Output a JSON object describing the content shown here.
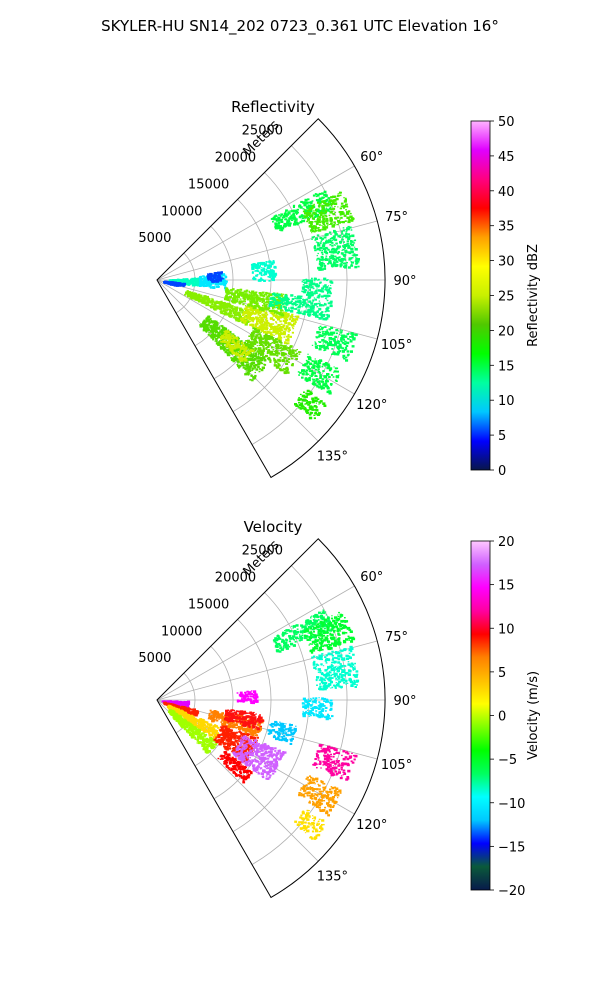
{
  "figure": {
    "suptitle": "SKYLER-HU  SN14_202  0723_0.361 UTC Elevation 16°"
  },
  "chart_data": [
    {
      "type": "polar-sector",
      "title": "Reflectivity",
      "r_label": "Meters",
      "r_ticks": [
        "5000",
        "10000",
        "15000",
        "20000",
        "25000"
      ],
      "r_lim": [
        0,
        30000
      ],
      "theta_ticks": [
        "60°",
        "75°",
        "90°",
        "105°",
        "120°",
        "135°"
      ],
      "theta_range_deg": [
        45,
        150
      ],
      "grid": true,
      "colorbar": {
        "label": "Reflectivity dBZ",
        "ticks": [
          "0",
          "5",
          "10",
          "15",
          "20",
          "25",
          "30",
          "35",
          "40",
          "45",
          "50"
        ],
        "range": [
          0,
          50
        ],
        "palette": [
          "#08164b",
          "#0000ff",
          "#00c8ff",
          "#00ffa0",
          "#00ff00",
          "#50c800",
          "#c8f000",
          "#ffff00",
          "#ffa000",
          "#ff0000",
          "#ff0080",
          "#e000ff",
          "#ffb4ff"
        ]
      },
      "echoes": [
        {
          "r": [
            1500,
            5500
          ],
          "theta": [
            86,
            97
          ],
          "color": "#00ffc0"
        },
        {
          "r": [
            800,
            3500
          ],
          "theta": [
            95,
            104
          ],
          "color": "#0044ff"
        },
        {
          "r": [
            5500,
            9000
          ],
          "theta": [
            84,
            97
          ],
          "color": "#00e8ff"
        },
        {
          "r": [
            6500,
            8500
          ],
          "theta": [
            82,
            91
          ],
          "color": "#0044ff"
        },
        {
          "r": [
            4000,
            13000
          ],
          "theta": [
            108,
            117
          ],
          "color": "#88ee00"
        },
        {
          "r": [
            12000,
            19000
          ],
          "theta": [
            104,
            116
          ],
          "color": "#ccf000"
        },
        {
          "r": [
            9000,
            17000
          ],
          "theta": [
            96,
            106
          ],
          "color": "#77ee00"
        },
        {
          "r": [
            8000,
            18000
          ],
          "theta": [
            125,
            137
          ],
          "color": "#55dd00"
        },
        {
          "r": [
            11000,
            15500
          ],
          "theta": [
            126,
            134
          ],
          "color": "#ccee00"
        },
        {
          "r": [
            14000,
            21000
          ],
          "theta": [
            116,
            126
          ],
          "color": "#66e000"
        },
        {
          "r": [
            15000,
            23000
          ],
          "theta": [
            96,
            103
          ],
          "color": "#00ff88"
        },
        {
          "r": [
            17000,
            25000
          ],
          "theta": [
            61,
            68
          ],
          "color": "#00ff44"
        },
        {
          "r": [
            21000,
            27000
          ],
          "theta": [
            64,
            73
          ],
          "color": "#44ee00"
        },
        {
          "r": [
            21000,
            26500
          ],
          "theta": [
            74,
            86
          ],
          "color": "#00ff66"
        },
        {
          "r": [
            12500,
            15500
          ],
          "theta": [
            80,
            90
          ],
          "color": "#00ffd0"
        },
        {
          "r": [
            19000,
            23000
          ],
          "theta": [
            89,
            96
          ],
          "color": "#00ff88"
        },
        {
          "r": [
            22000,
            27000
          ],
          "theta": [
            105,
            113
          ],
          "color": "#00ff55"
        },
        {
          "r": [
            22000,
            27000
          ],
          "theta": [
            116,
            124
          ],
          "color": "#00ff44"
        },
        {
          "r": [
            24000,
            27500
          ],
          "theta": [
            126,
            132
          ],
          "color": "#22ee00"
        }
      ]
    },
    {
      "type": "polar-sector",
      "title": "Velocity",
      "r_label": "Meters",
      "r_ticks": [
        "5000",
        "10000",
        "15000",
        "20000",
        "25000"
      ],
      "r_lim": [
        0,
        30000
      ],
      "theta_ticks": [
        "60°",
        "75°",
        "90°",
        "105°",
        "120°",
        "135°"
      ],
      "theta_range_deg": [
        45,
        150
      ],
      "grid": true,
      "colorbar": {
        "label": "Velocity (m/s)",
        "ticks": [
          "−20",
          "−15",
          "−10",
          "−5",
          "0",
          "5",
          "10",
          "15",
          "20"
        ],
        "range": [
          -20,
          20
        ],
        "palette": [
          "#081a4b",
          "#0a5a3a",
          "#0000ff",
          "#00c8ff",
          "#00ffff",
          "#00ff60",
          "#00ff00",
          "#80ff00",
          "#ffff00",
          "#ffc000",
          "#ff8000",
          "#ff0000",
          "#ff00a0",
          "#ff00ff",
          "#d060ff",
          "#ffc8ff"
        ]
      },
      "echoes": [
        {
          "r": [
            600,
            4000
          ],
          "theta": [
            91,
            102
          ],
          "color": "#e000ff"
        },
        {
          "r": [
            800,
            5500
          ],
          "theta": [
            103,
            112
          ],
          "color": "#ff2000"
        },
        {
          "r": [
            1500,
            9000
          ],
          "theta": [
            113,
            124
          ],
          "color": "#ffd800"
        },
        {
          "r": [
            2000,
            9500
          ],
          "theta": [
            125,
            137
          ],
          "color": "#a0ff00"
        },
        {
          "r": [
            9000,
            14000
          ],
          "theta": [
            110,
            125
          ],
          "color": "#ff2000"
        },
        {
          "r": [
            7000,
            14000
          ],
          "theta": [
            100,
            110
          ],
          "color": "#ff8000"
        },
        {
          "r": [
            12000,
            18000
          ],
          "theta": [
            112,
            126
          ],
          "color": "#d060ff"
        },
        {
          "r": [
            11000,
            15500
          ],
          "theta": [
            127,
            134
          ],
          "color": "#ff0000"
        },
        {
          "r": [
            9000,
            14000
          ],
          "theta": [
            97,
            106
          ],
          "color": "#ff1010"
        },
        {
          "r": [
            15000,
            18500
          ],
          "theta": [
            100,
            108
          ],
          "color": "#00c8ff"
        },
        {
          "r": [
            10500,
            13000
          ],
          "theta": [
            84,
            91
          ],
          "color": "#ff00ff"
        },
        {
          "r": [
            17000,
            25000
          ],
          "theta": [
            61,
            68
          ],
          "color": "#00ff60"
        },
        {
          "r": [
            21000,
            27000
          ],
          "theta": [
            64,
            73
          ],
          "color": "#00ff30"
        },
        {
          "r": [
            21000,
            26500
          ],
          "theta": [
            74,
            86
          ],
          "color": "#00ffd0"
        },
        {
          "r": [
            19000,
            23000
          ],
          "theta": [
            89,
            96
          ],
          "color": "#00e8ff"
        },
        {
          "r": [
            22000,
            27000
          ],
          "theta": [
            105,
            113
          ],
          "color": "#ff00a0"
        },
        {
          "r": [
            22000,
            27000
          ],
          "theta": [
            116,
            124
          ],
          "color": "#ffa000"
        },
        {
          "r": [
            24000,
            27500
          ],
          "theta": [
            126,
            132
          ],
          "color": "#ffe000"
        }
      ]
    }
  ]
}
